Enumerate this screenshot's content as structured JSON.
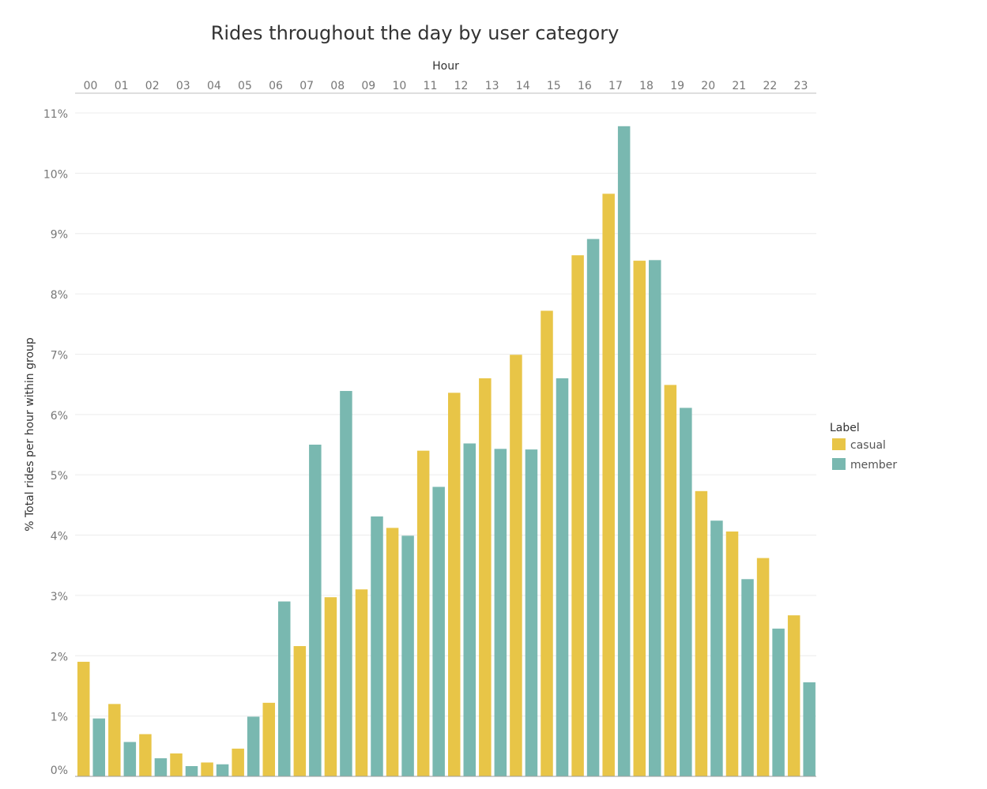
{
  "chart_data": {
    "type": "bar",
    "title": "Rides throughout the day by user category",
    "xlabel": "Hour",
    "ylabel": "% Total rides per hour within group",
    "categories": [
      "00",
      "01",
      "02",
      "03",
      "04",
      "05",
      "06",
      "07",
      "08",
      "09",
      "10",
      "11",
      "12",
      "13",
      "14",
      "15",
      "16",
      "17",
      "18",
      "19",
      "20",
      "21",
      "22",
      "23"
    ],
    "series": [
      {
        "name": "casual",
        "color": "#E8C547",
        "values": [
          1.9,
          1.2,
          0.7,
          0.38,
          0.23,
          0.46,
          1.22,
          2.16,
          2.97,
          3.1,
          4.12,
          5.4,
          6.36,
          6.6,
          6.99,
          7.72,
          8.64,
          9.66,
          8.55,
          6.49,
          4.73,
          4.06,
          3.62,
          2.67
        ]
      },
      {
        "name": "member",
        "color": "#79B8B0",
        "values": [
          0.96,
          0.57,
          0.3,
          0.17,
          0.2,
          0.99,
          2.9,
          5.5,
          6.39,
          4.31,
          3.99,
          4.8,
          5.52,
          5.43,
          5.42,
          6.6,
          8.91,
          10.78,
          8.56,
          6.11,
          4.24,
          3.27,
          2.45,
          1.56
        ]
      }
    ],
    "ylim": [
      0,
      11
    ],
    "yticks": [
      "0%",
      "1%",
      "2%",
      "3%",
      "4%",
      "5%",
      "6%",
      "7%",
      "8%",
      "9%",
      "10%",
      "11%"
    ],
    "grid": true,
    "legend": {
      "title": "Label",
      "position": "right",
      "entries": [
        "casual",
        "member"
      ]
    }
  }
}
